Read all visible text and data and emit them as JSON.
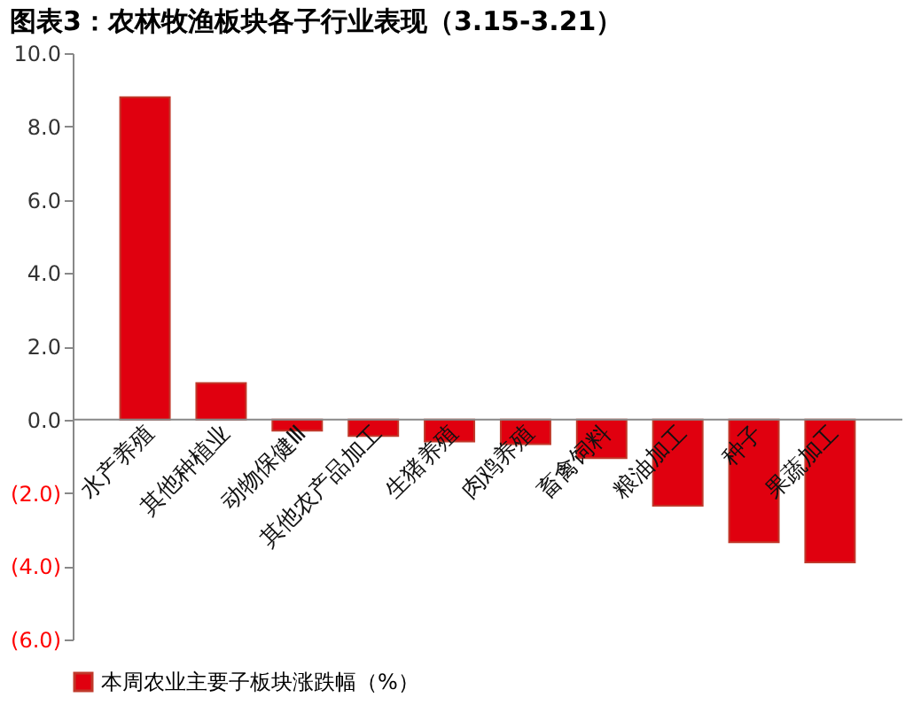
{
  "chart_data": {
    "type": "bar",
    "title": "图表3：农林牧渔板块各子行业表现（3.15-3.21）",
    "categories": [
      "水产养殖",
      "其他种植业",
      "动物保健Ⅲ",
      "其他农产品加工",
      "生猪养殖",
      "肉鸡养殖",
      "畜禽饲料",
      "粮油加工",
      "种子",
      "果蔬加工"
    ],
    "series": [
      {
        "name": "本周农业主要子板块涨跌幅（%）",
        "color": "#e0000f",
        "values": [
          8.8,
          1.0,
          -0.3,
          -0.45,
          -0.6,
          -0.67,
          -1.05,
          -2.35,
          -3.35,
          -3.9
        ]
      }
    ],
    "ylim": [
      -6,
      10
    ],
    "yticks": [
      {
        "value": 10,
        "label": "10.0"
      },
      {
        "value": 8,
        "label": "8.0"
      },
      {
        "value": 6,
        "label": "6.0"
      },
      {
        "value": 4,
        "label": "4.0"
      },
      {
        "value": 2,
        "label": "2.0"
      },
      {
        "value": 0,
        "label": "0.0"
      },
      {
        "value": -2,
        "label": "(2.0)"
      },
      {
        "value": -4,
        "label": "(4.0)"
      },
      {
        "value": -6,
        "label": "(6.0)"
      }
    ],
    "grid": false,
    "legend": "bottom"
  }
}
